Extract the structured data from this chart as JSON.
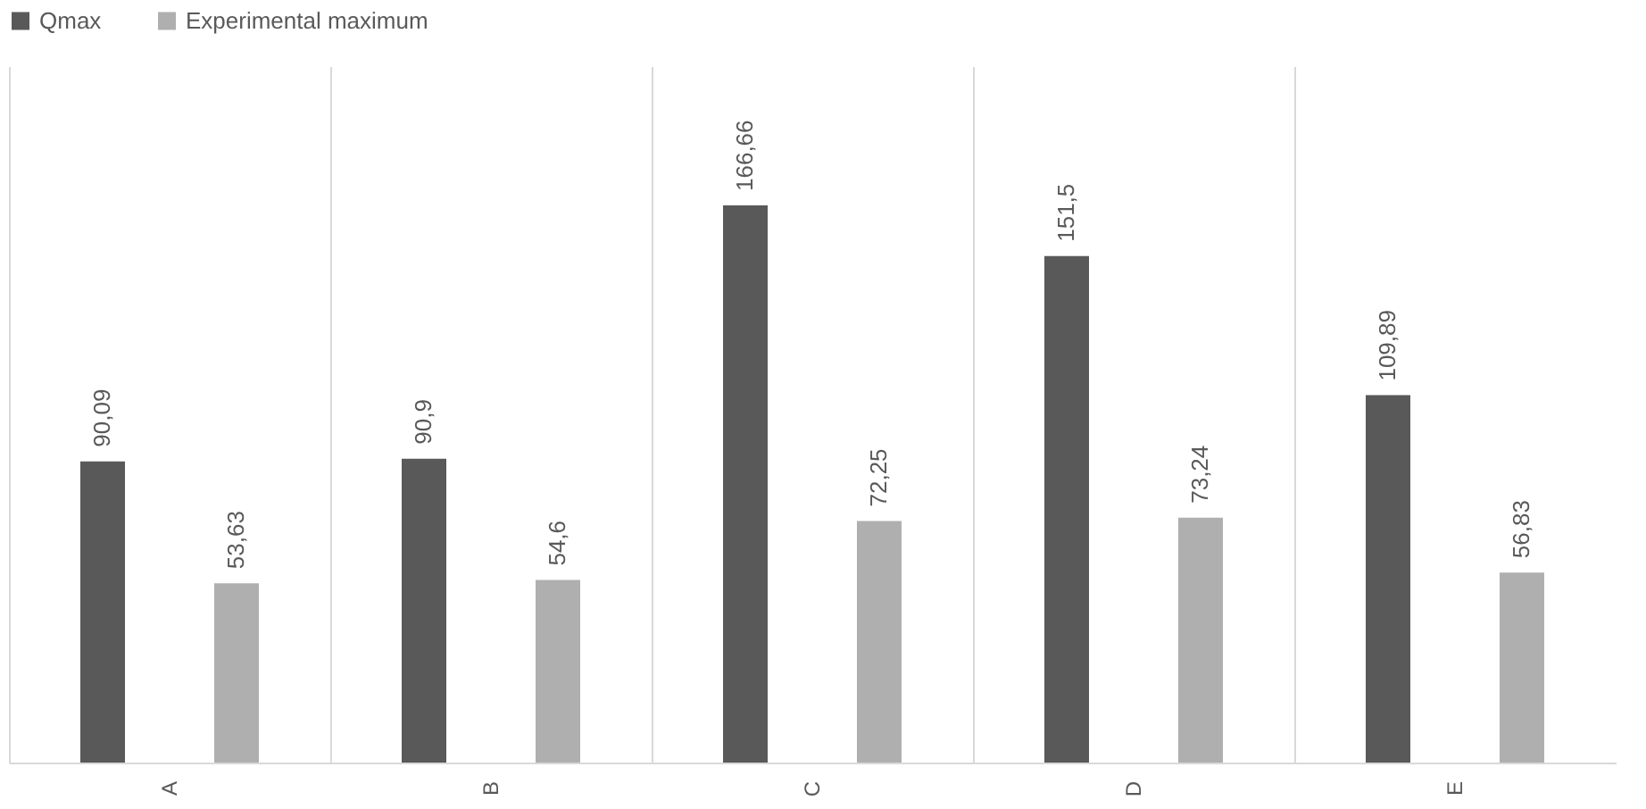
{
  "chart_data": {
    "type": "bar",
    "categories": [
      "A",
      "B",
      "C",
      "D",
      "E"
    ],
    "series": [
      {
        "name": "Qmax",
        "color": "#595959",
        "values": [
          90.09,
          90.9,
          166.66,
          151.5,
          109.89
        ],
        "value_labels": [
          "90,09",
          "90,9",
          "166,66",
          "151,5",
          "109,89"
        ]
      },
      {
        "name": "Experimental maximum",
        "color": "#afafaf",
        "values": [
          53.63,
          54.6,
          72.25,
          73.24,
          56.83
        ],
        "value_labels": [
          "53,63",
          "54,6",
          "72,25",
          "73,24",
          "56,83"
        ]
      }
    ],
    "legend": "top",
    "grid": "x"
  }
}
